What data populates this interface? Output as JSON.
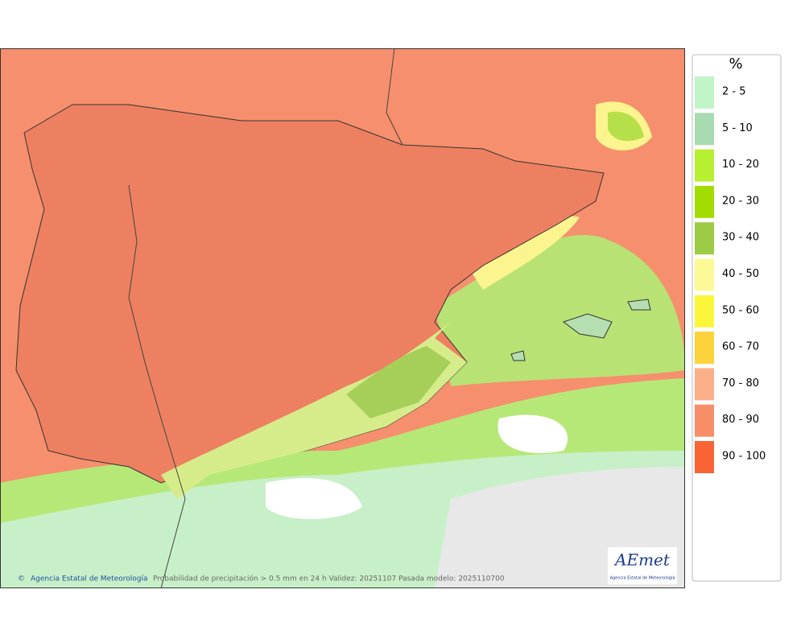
{
  "map": {
    "footer": {
      "agency": "Agencia Estatal de Meteorología",
      "caption": "Probabilidad de precipitación > 0.5 mm en 24 h Validez: 20251107 Pasada modelo: 2025110700"
    },
    "logo": {
      "name": "AEmet",
      "subtitle": "Agencia Estatal de Meteorología"
    },
    "legend": {
      "title": "%",
      "items": [
        {
          "label": "2 - 5",
          "color": "#c0f5c8"
        },
        {
          "label": "5 - 10",
          "color": "#a8dcb0"
        },
        {
          "label": "10 - 20",
          "color": "#b6f030"
        },
        {
          "label": "20 - 30",
          "color": "#a2dc00"
        },
        {
          "label": "30 - 40",
          "color": "#9ccc46"
        },
        {
          "label": "40 - 50",
          "color": "#fcfa96"
        },
        {
          "label": "50 - 60",
          "color": "#fcf63a"
        },
        {
          "label": "60 - 70",
          "color": "#fcd23a"
        },
        {
          "label": "70 - 80",
          "color": "#fcb08a"
        },
        {
          "label": "80 - 90",
          "color": "#f88e68"
        },
        {
          "label": "90 - 100",
          "color": "#fa6434"
        }
      ]
    }
  }
}
